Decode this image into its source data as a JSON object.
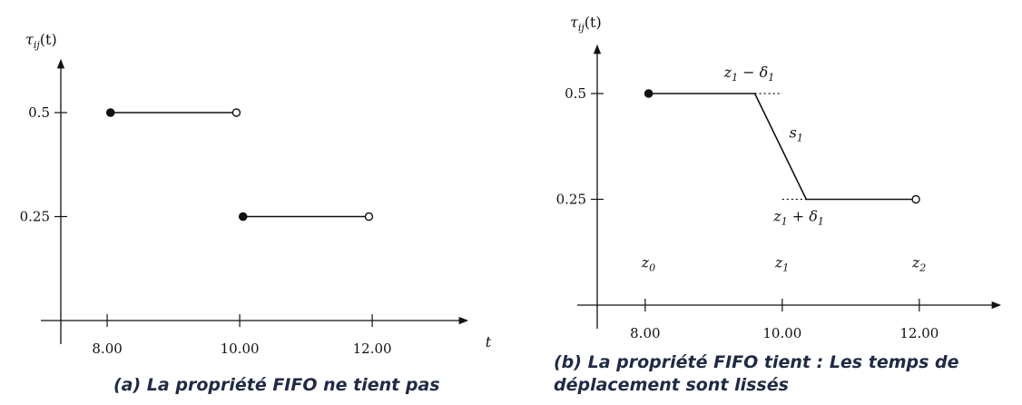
{
  "chart_data": [
    {
      "type": "line",
      "ylabel": "τij(t)",
      "xlabel": "t",
      "xlim": [
        7.3,
        13.0
      ],
      "ylim": [
        0,
        0.61
      ],
      "x_ticks": [
        8.0,
        10.0,
        12.0
      ],
      "x_tick_labels": [
        "8.00",
        "10.00",
        "12.00"
      ],
      "y_ticks": [
        0.5,
        0.25
      ],
      "y_tick_labels": [
        "0.5",
        "0.25"
      ],
      "series": [
        {
          "points": [
            [
              8.05,
              0.5
            ],
            [
              9.95,
              0.5
            ]
          ],
          "start_marker": "filled",
          "end_marker": "open"
        },
        {
          "points": [
            [
              10.05,
              0.25
            ],
            [
              11.95,
              0.25
            ]
          ],
          "start_marker": "filled",
          "end_marker": "open"
        }
      ],
      "caption": "(a) La propriété FIFO ne tient pas"
    },
    {
      "type": "line",
      "ylabel": "τij(t)",
      "xlabel": "",
      "xlim": [
        7.3,
        13.0
      ],
      "ylim": [
        0,
        0.61
      ],
      "x_ticks": [
        8.0,
        10.0,
        12.0
      ],
      "x_tick_labels": [
        "8.00",
        "10.00",
        "12.00"
      ],
      "y_ticks": [
        0.5,
        0.25
      ],
      "y_tick_labels": [
        "0.5",
        "0.25"
      ],
      "series": [
        {
          "points": [
            [
              8.05,
              0.5
            ],
            [
              9.6,
              0.5
            ],
            [
              10.35,
              0.25
            ],
            [
              11.95,
              0.25
            ]
          ],
          "start_marker": "filled",
          "end_marker": "open"
        }
      ],
      "dotted_extensions": [
        {
          "from": [
            9.6,
            0.5
          ],
          "to": [
            10.0,
            0.5
          ]
        },
        {
          "from": [
            10.0,
            0.25
          ],
          "to": [
            10.35,
            0.25
          ]
        }
      ],
      "annotations": [
        {
          "text": "z1 − δ1",
          "x": 9.6,
          "y": 0.5
        },
        {
          "text": "s1",
          "x": 10.05,
          "y": 0.39
        },
        {
          "text": "z1 + δ1",
          "x": 10.35,
          "y": 0.25
        },
        {
          "text": "z0",
          "x": 8.05,
          "y": 0.1
        },
        {
          "text": "z1",
          "x": 10.0,
          "y": 0.1
        },
        {
          "text": "z2",
          "x": 12.0,
          "y": 0.1
        }
      ],
      "caption": "(b) La propriété FIFO tient : Les temps de déplacement sont lissés"
    }
  ]
}
